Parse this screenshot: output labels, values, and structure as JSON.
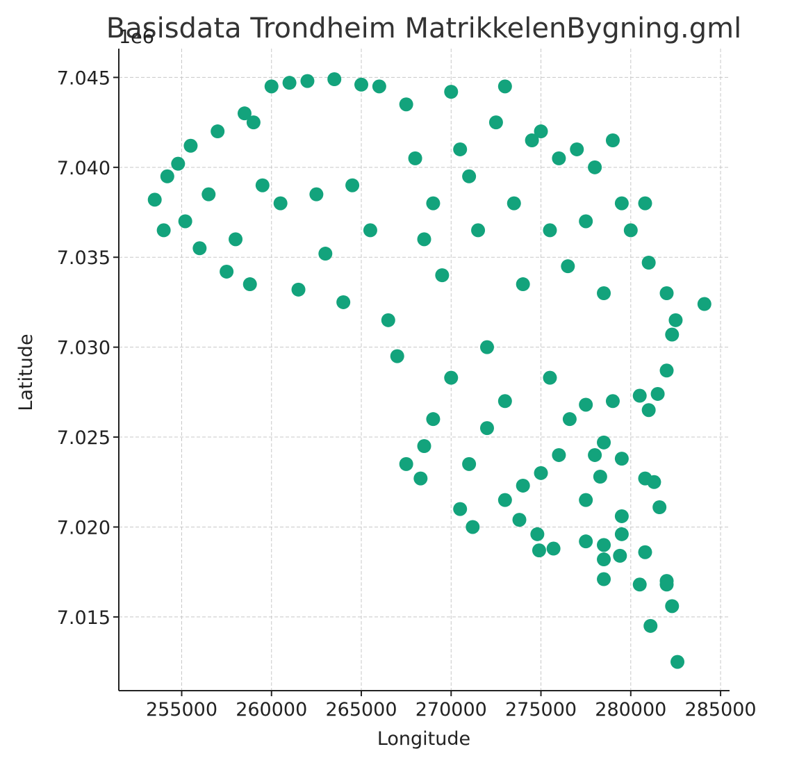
{
  "chart_data": {
    "type": "scatter",
    "title": "Basisdata Trondheim MatrikkelenBygning.gml",
    "xlabel": "Longitude",
    "ylabel": "Latitude",
    "y_offset_text": "1e6",
    "xlim": [
      251500,
      285500
    ],
    "ylim": [
      7010900,
      7046600
    ],
    "xticks": [
      255000,
      260000,
      265000,
      270000,
      275000,
      280000,
      285000
    ],
    "xtick_labels": [
      "255000",
      "260000",
      "265000",
      "270000",
      "275000",
      "280000",
      "285000"
    ],
    "yticks": [
      7015000,
      7020000,
      7025000,
      7030000,
      7035000,
      7040000,
      7045000
    ],
    "ytick_labels": [
      "7.015",
      "7.020",
      "7.025",
      "7.030",
      "7.035",
      "7.040",
      "7.045"
    ],
    "grid": true,
    "marker_color": "#13a37c",
    "series": [
      {
        "points": [
          [
            253500,
            7038200
          ],
          [
            254000,
            7036500
          ],
          [
            254200,
            7039500
          ],
          [
            254800,
            7040200
          ],
          [
            255500,
            7041200
          ],
          [
            255200,
            7037000
          ],
          [
            256000,
            7035500
          ],
          [
            257000,
            7042000
          ],
          [
            256500,
            7038500
          ],
          [
            257500,
            7034200
          ],
          [
            258000,
            7036000
          ],
          [
            258500,
            7043000
          ],
          [
            259000,
            7042500
          ],
          [
            259500,
            7039000
          ],
          [
            258800,
            7033500
          ],
          [
            260000,
            7044500
          ],
          [
            260500,
            7038000
          ],
          [
            261000,
            7044700
          ],
          [
            261500,
            7033200
          ],
          [
            262000,
            7044800
          ],
          [
            262500,
            7038500
          ],
          [
            263000,
            7035200
          ],
          [
            263500,
            7044900
          ],
          [
            264000,
            7032500
          ],
          [
            264500,
            7039000
          ],
          [
            265000,
            7044600
          ],
          [
            265500,
            7036500
          ],
          [
            266000,
            7044500
          ],
          [
            266500,
            7031500
          ],
          [
            267000,
            7029500
          ],
          [
            267500,
            7043500
          ],
          [
            268000,
            7040500
          ],
          [
            268500,
            7036000
          ],
          [
            269000,
            7038000
          ],
          [
            269500,
            7034000
          ],
          [
            270000,
            7044200
          ],
          [
            270500,
            7041000
          ],
          [
            271000,
            7039500
          ],
          [
            271500,
            7036500
          ],
          [
            272000,
            7030000
          ],
          [
            272500,
            7042500
          ],
          [
            273000,
            7044500
          ],
          [
            273500,
            7038000
          ],
          [
            274000,
            7033500
          ],
          [
            274500,
            7041500
          ],
          [
            275000,
            7042000
          ],
          [
            275500,
            7036500
          ],
          [
            276000,
            7040500
          ],
          [
            276500,
            7034500
          ],
          [
            277000,
            7041000
          ],
          [
            277500,
            7037000
          ],
          [
            278000,
            7040000
          ],
          [
            278500,
            7033000
          ],
          [
            279000,
            7041500
          ],
          [
            279500,
            7038000
          ],
          [
            280000,
            7036500
          ],
          [
            280800,
            7038000
          ],
          [
            281000,
            7034700
          ],
          [
            282000,
            7033000
          ],
          [
            282500,
            7031500
          ],
          [
            284100,
            7032400
          ],
          [
            280500,
            7027300
          ],
          [
            281000,
            7026500
          ],
          [
            282000,
            7028700
          ],
          [
            279000,
            7027000
          ],
          [
            278000,
            7024000
          ],
          [
            277500,
            7026800
          ],
          [
            276600,
            7026000
          ],
          [
            275500,
            7028300
          ],
          [
            273000,
            7027000
          ],
          [
            272000,
            7025500
          ],
          [
            271000,
            7023500
          ],
          [
            270500,
            7021000
          ],
          [
            271200,
            7020000
          ],
          [
            269000,
            7026000
          ],
          [
            268500,
            7024500
          ],
          [
            267500,
            7023500
          ],
          [
            268300,
            7022700
          ],
          [
            270000,
            7028300
          ],
          [
            273000,
            7021500
          ],
          [
            274000,
            7022300
          ],
          [
            275000,
            7023000
          ],
          [
            276000,
            7024000
          ],
          [
            277500,
            7021500
          ],
          [
            273800,
            7020400
          ],
          [
            274800,
            7019600
          ],
          [
            274900,
            7018700
          ],
          [
            275700,
            7018800
          ],
          [
            277500,
            7019200
          ],
          [
            278500,
            7019000
          ],
          [
            278500,
            7018200
          ],
          [
            278500,
            7017100
          ],
          [
            279500,
            7020600
          ],
          [
            279500,
            7019600
          ],
          [
            279400,
            7018400
          ],
          [
            280800,
            7018600
          ],
          [
            280500,
            7016800
          ],
          [
            282000,
            7017000
          ],
          [
            282000,
            7016800
          ],
          [
            281600,
            7021100
          ],
          [
            280800,
            7022700
          ],
          [
            281300,
            7022500
          ],
          [
            282300,
            7015600
          ],
          [
            281100,
            7014500
          ],
          [
            282600,
            7012500
          ],
          [
            278300,
            7022800
          ],
          [
            278500,
            7024700
          ],
          [
            279500,
            7023800
          ],
          [
            281500,
            7027400
          ],
          [
            282300,
            7030700
          ]
        ]
      }
    ]
  }
}
